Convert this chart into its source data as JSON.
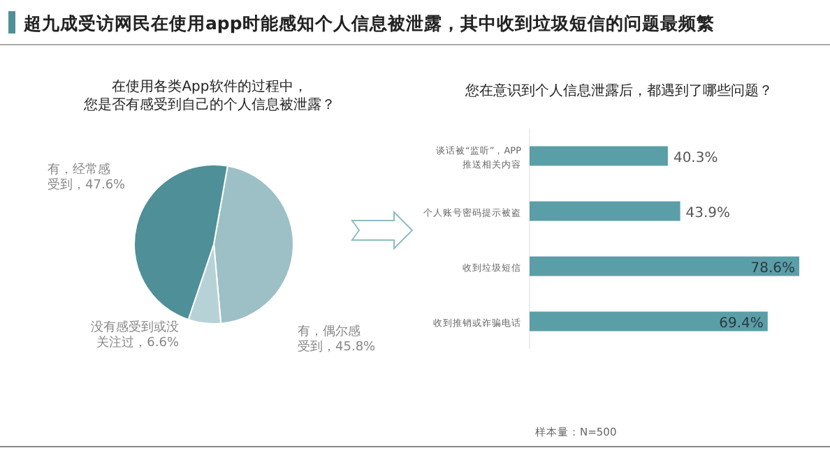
{
  "chart_data": [
    {
      "type": "pie",
      "title": "在使用各类App软件的过程中，您是否有感受到自己的个人信息被泄露？",
      "annotations": [
        "超九成受访网民在使用app时能感知个人信息被泄露，其中收到垃圾短信的问题最频繁"
      ],
      "categories": [
        "有，偶尔感受到",
        "没有感受到或没关注过",
        "有，经常感受到"
      ],
      "values": [
        45.8,
        6.6,
        47.6
      ],
      "value_labels": [
        "45.8%",
        "6.6%",
        "47.6%"
      ],
      "colors": [
        "#9dc0c7",
        "#b7d2d7",
        "#4f8f98"
      ]
    },
    {
      "type": "bar",
      "orientation": "horizontal",
      "title": "您在意识到个人信息泄露后，都遇到了哪些问题？",
      "categories": [
        "谈话被“监听”，APP推送相关内容",
        "个人账号密码提示被盗",
        "收到垃圾短信",
        "收到推销或诈骗电话"
      ],
      "values": [
        40.3,
        43.9,
        78.6,
        69.4
      ],
      "value_labels": [
        "40.3%",
        "43.9%",
        "78.6%",
        "69.4%"
      ],
      "color": "#5a9ea8",
      "annotations": [
        "样本量：N=500"
      ]
    }
  ]
}
